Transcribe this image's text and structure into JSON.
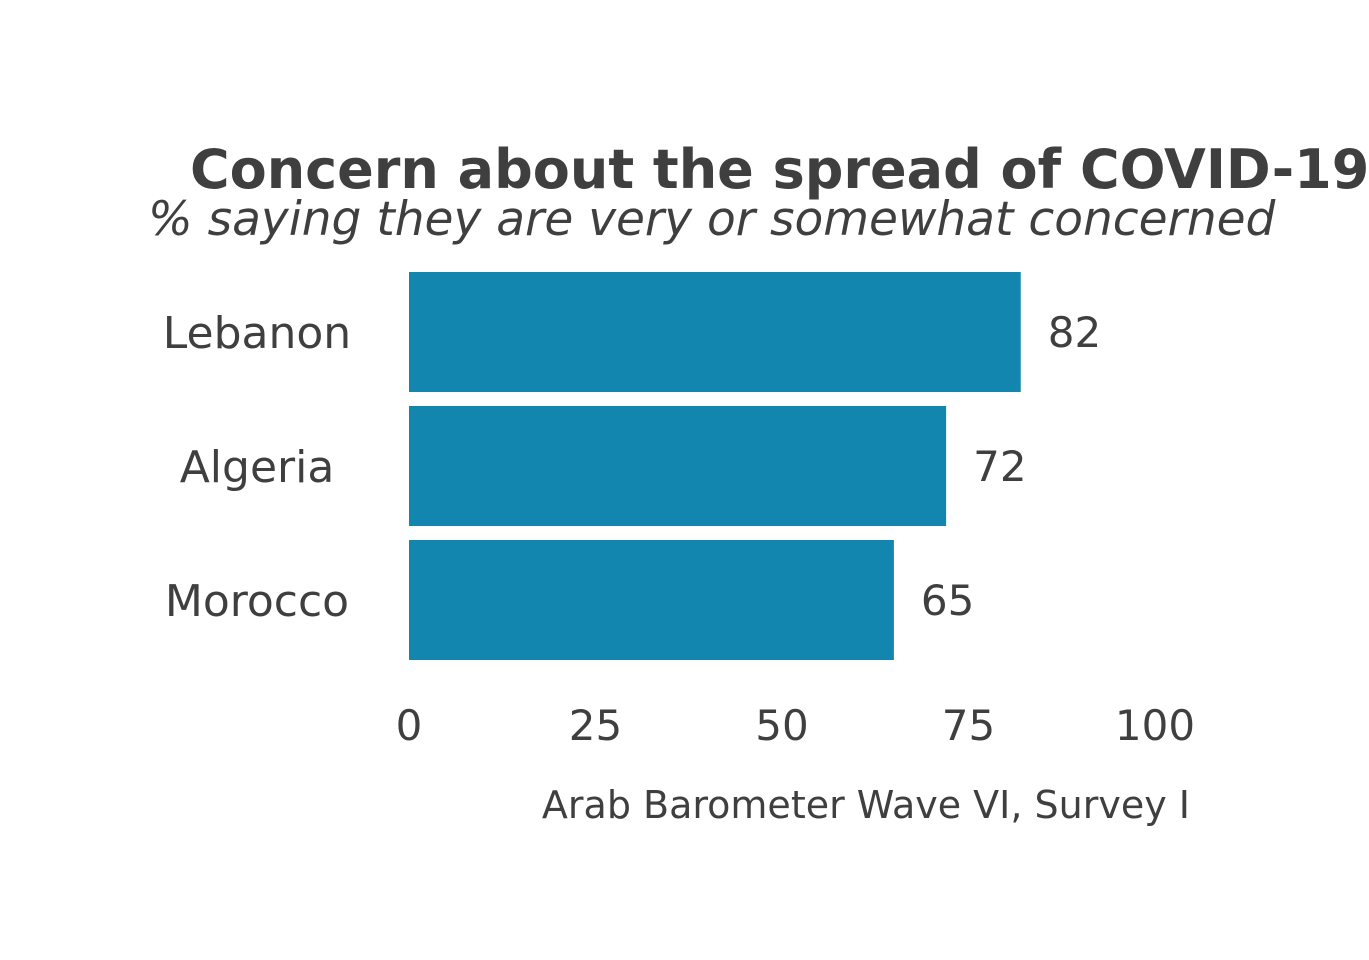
{
  "chart_data": {
    "type": "bar",
    "orientation": "horizontal",
    "title": "Concern about the spread of COVID-19",
    "subtitle": "% saying they are very or somewhat concerned",
    "categories": [
      "Lebanon",
      "Algeria",
      "Morocco"
    ],
    "values": [
      82,
      72,
      65
    ],
    "value_labels": [
      "82",
      "72",
      "65"
    ],
    "xlim": [
      0,
      100
    ],
    "x_ticks": [
      0,
      25,
      50,
      75,
      100
    ],
    "x_tick_labels": [
      "0",
      "25",
      "50",
      "75",
      "100"
    ],
    "caption": "Arab Barometer Wave VI, Survey I",
    "bar_color": "#1386B0",
    "grid": false,
    "legend": "none"
  }
}
